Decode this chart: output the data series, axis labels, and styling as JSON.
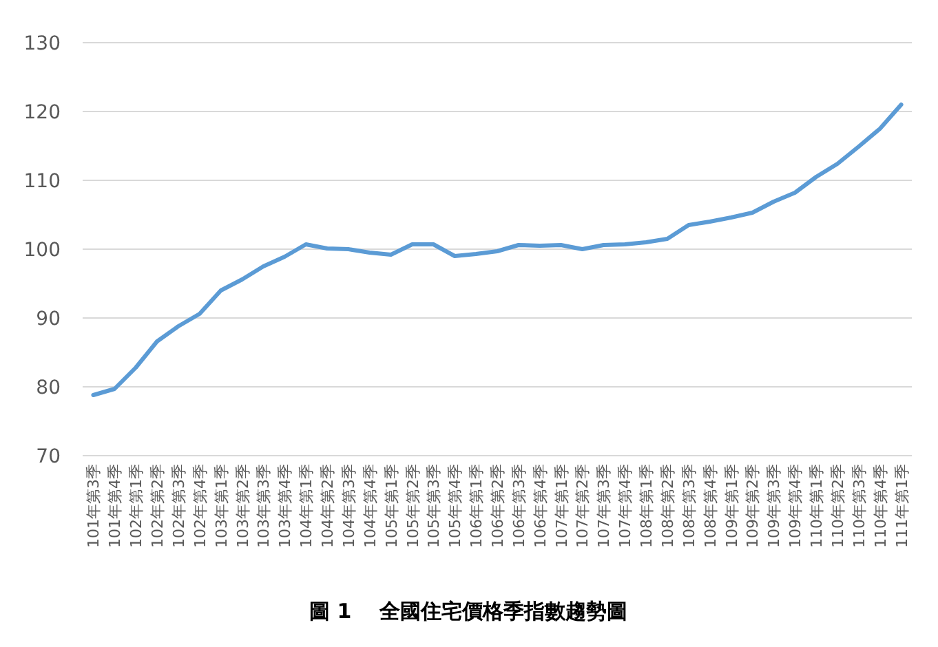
{
  "chart_data": {
    "type": "line",
    "title": "圖 1　 全國住宅價格季指數趨勢圖",
    "categories": [
      "101年第3季",
      "101年第4季",
      "102年第1季",
      "102年第2季",
      "102年第3季",
      "102年第4季",
      "103年第1季",
      "103年第2季",
      "103年第3季",
      "103年第4季",
      "104年第1季",
      "104年第2季",
      "104年第3季",
      "104年第4季",
      "105年第1季",
      "105年第2季",
      "105年第3季",
      "105年第4季",
      "106年第1季",
      "106年第2季",
      "106年第3季",
      "106年第4季",
      "107年第1季",
      "107年第2季",
      "107年第3季",
      "107年第4季",
      "108年第1季",
      "108年第2季",
      "108年第3季",
      "108年第4季",
      "109年第1季",
      "109年第2季",
      "109年第3季",
      "109年第4季",
      "110年第1季",
      "110年第2季",
      "110年第3季",
      "110年第4季",
      "111年第1季"
    ],
    "series": [
      {
        "color": "#5b9bd5",
        "values": [
          78.8,
          79.7,
          82.8,
          86.6,
          88.8,
          90.6,
          94.0,
          95.6,
          97.5,
          98.9,
          100.7,
          100.1,
          100.0,
          99.5,
          99.2,
          100.7,
          100.7,
          99.0,
          99.3,
          99.7,
          100.6,
          100.5,
          100.6,
          100.0,
          100.6,
          100.7,
          101.0,
          101.5,
          103.5,
          104.0,
          104.6,
          105.3,
          106.9,
          108.2,
          110.5,
          112.4,
          114.9,
          117.5,
          121.0
        ]
      }
    ],
    "ylim": [
      70,
      130
    ],
    "yticks": [
      70,
      80,
      90,
      100,
      110,
      120,
      130
    ],
    "grid": "y",
    "marker": "none",
    "line_style": "solid"
  }
}
